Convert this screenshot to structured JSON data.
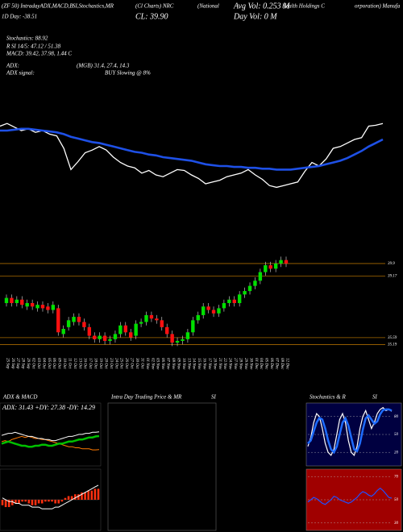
{
  "header": {
    "line1": [
      "(ZF 50) IntradayADX,MACD,B",
      "SI,Stochastics,MR",
      "(Cl Charts) NRC",
      "(National",
      "Avg Vol: 0.253 M",
      "Health Holdings C",
      "orporation) Manufa"
    ],
    "line2": [
      "1D Day: -38.51",
      "CL: 39.90",
      "Day Vol: 0  M"
    ],
    "info": [
      "Stochastics: 88.92",
      "R  SI 14/5: 47.12 / 51.38",
      "MACD: 39.42, 37.98, 1.44  C",
      "ADX:",
      "(MGB) 31.4, 27.4, 14.3",
      "ADX  signal:",
      "BUY Slowing @ 8%"
    ]
  },
  "overlay_chart": {
    "type": "line",
    "ylim": [
      0,
      100
    ],
    "series": [
      {
        "color": "#ffffff",
        "values": [
          85,
          88,
          84,
          80,
          82,
          78,
          80,
          76,
          74,
          60,
          36,
          45,
          55,
          58,
          62,
          58,
          50,
          44,
          40,
          38,
          32,
          35,
          30,
          28,
          32,
          36,
          35,
          30,
          26,
          20,
          22,
          24,
          28,
          30,
          32,
          36,
          30,
          25,
          18,
          16,
          18,
          20,
          22,
          34,
          44,
          40,
          48,
          60,
          62,
          66,
          70,
          72,
          85,
          86,
          88
        ]
      },
      {
        "color": "#1e50e6",
        "values": [
          80,
          80,
          81,
          82,
          82,
          81,
          80,
          79,
          78,
          76,
          73,
          71,
          69,
          67,
          66,
          64,
          62,
          60,
          58,
          56,
          55,
          53,
          52,
          50,
          49,
          48,
          47,
          46,
          44,
          42,
          41,
          40,
          40,
          39,
          39,
          38,
          38,
          37,
          37,
          36,
          36,
          36,
          37,
          38,
          39,
          40,
          42,
          44,
          46,
          49,
          53,
          57,
          62,
          66,
          70
        ]
      }
    ]
  },
  "price_chart": {
    "type": "candlestick",
    "up_color": "#00e000",
    "down_color": "#ff1010",
    "level_color": "#a86a00",
    "ylim": [
      34.6,
      40.6
    ],
    "yticks": [
      39.9,
      39.17,
      35.59,
      35.19
    ],
    "dates": [
      "25 Sep",
      "26 Sep",
      "27 Sep",
      "28 Sep",
      "29 Sep",
      "02 Oct",
      "03 Oct",
      "04 Oct",
      "05 Oct",
      "06 Oct",
      "09 Oct",
      "10 Oct",
      "11 Oct",
      "12 Oct",
      "13 Oct",
      "16 Oct",
      "17 Oct",
      "18 Oct",
      "19 Oct",
      "20 Oct",
      "23 Oct",
      "24 Oct",
      "25 Oct",
      "26 Oct",
      "27 Oct",
      "30 Oct",
      "31 Oct",
      "01 Nov",
      "02 Nov",
      "03 Nov",
      "06 Nov",
      "07 Nov",
      "08 Nov",
      "09 Nov",
      "10 Nov",
      "13 Nov",
      "14 Nov",
      "15 Nov",
      "16 Nov",
      "17 Nov",
      "20 Nov",
      "21 Nov",
      "22 Nov",
      "24 Nov",
      "27 Nov",
      "28 Nov",
      "29 Nov",
      "30 Nov",
      "01 Dec",
      "04 Dec",
      "05 Dec",
      "06 Dec",
      "07 Dec",
      "08 Dec",
      "12 Dec"
    ],
    "open": [
      37.6,
      37.9,
      37.6,
      37.8,
      37.4,
      37.6,
      37.3,
      37.5,
      37.4,
      37.2,
      37.3,
      35.8,
      36.2,
      36.5,
      36.8,
      36.5,
      36.2,
      35.7,
      35.5,
      35.7,
      35.4,
      35.5,
      35.8,
      36.3,
      35.9,
      35.7,
      36.4,
      36.5,
      36.9,
      36.7,
      36.6,
      36.2,
      35.8,
      35.3,
      35.4,
      35.5,
      35.9,
      36.6,
      36.9,
      37.4,
      37.2,
      37.0,
      37.3,
      37.6,
      37.8,
      37.6,
      38.1,
      38.3,
      38.6,
      38.9,
      39.4,
      39.8,
      39.6,
      39.9,
      40.1
    ],
    "high": [
      38.1,
      38.1,
      38.0,
      38.0,
      37.8,
      37.8,
      37.7,
      37.7,
      37.6,
      37.7,
      37.5,
      36.3,
      36.8,
      37.0,
      37.0,
      36.7,
      36.4,
      35.9,
      35.9,
      35.9,
      35.7,
      36.0,
      36.5,
      36.5,
      36.1,
      36.6,
      36.7,
      37.1,
      37.1,
      36.9,
      36.8,
      36.4,
      36.0,
      35.6,
      35.7,
      36.1,
      36.8,
      37.1,
      37.6,
      37.6,
      37.4,
      37.5,
      37.8,
      38.0,
      38.0,
      38.3,
      38.5,
      38.8,
      39.1,
      39.6,
      40.0,
      40.0,
      40.1,
      40.3,
      40.3
    ],
    "low": [
      37.4,
      37.4,
      37.4,
      37.3,
      37.2,
      37.2,
      37.1,
      37.1,
      37.0,
      37.0,
      35.7,
      35.6,
      36.0,
      36.3,
      36.3,
      36.0,
      35.5,
      35.3,
      35.3,
      35.2,
      35.2,
      35.3,
      35.6,
      35.7,
      35.4,
      35.5,
      36.2,
      36.3,
      36.5,
      36.4,
      36.0,
      35.6,
      35.1,
      35.1,
      35.2,
      35.3,
      35.7,
      36.4,
      36.7,
      37.0,
      36.8,
      36.8,
      37.1,
      37.4,
      37.4,
      37.4,
      37.9,
      38.1,
      38.4,
      38.7,
      39.2,
      39.4,
      39.4,
      39.7,
      39.7
    ],
    "close": [
      37.9,
      37.6,
      37.8,
      37.5,
      37.6,
      37.4,
      37.5,
      37.3,
      37.2,
      37.5,
      35.9,
      36.1,
      36.6,
      36.8,
      36.5,
      36.2,
      35.7,
      35.5,
      35.7,
      35.4,
      35.5,
      35.8,
      36.3,
      35.9,
      35.6,
      36.4,
      36.5,
      36.9,
      36.7,
      36.6,
      36.2,
      35.8,
      35.3,
      35.4,
      35.5,
      35.9,
      36.6,
      36.9,
      37.4,
      37.2,
      37.0,
      37.3,
      37.6,
      37.8,
      37.6,
      38.1,
      38.3,
      38.6,
      38.9,
      39.4,
      39.8,
      39.6,
      39.9,
      40.1,
      39.9
    ]
  },
  "adx_chart": {
    "type": "line",
    "title": "ADX  & MACD",
    "label": "ADX: 31.43  +DY: 27.38  -DY: 14.29",
    "ylim": [
      0,
      50
    ],
    "series": [
      {
        "color": "#ff7a00",
        "values": [
          22,
          23,
          22,
          24,
          25,
          26,
          27,
          26,
          27,
          26,
          25,
          25,
          24,
          24,
          23,
          22,
          21,
          20,
          19,
          18,
          17,
          17,
          16,
          16,
          15,
          15,
          15,
          14,
          14,
          14.29
        ]
      },
      {
        "color": "#00c000",
        "values": [
          20,
          21,
          22,
          21,
          20,
          19,
          18,
          18,
          17,
          17,
          18,
          18,
          19,
          19,
          18,
          18,
          19,
          20,
          20,
          21,
          22,
          22,
          23,
          24,
          24,
          25,
          26,
          26,
          27,
          27.38
        ]
      },
      {
        "color": "#ffffff",
        "values": [
          28,
          29,
          30,
          30,
          31,
          30,
          29,
          28,
          27,
          27,
          26,
          25,
          25,
          24,
          24,
          23,
          23,
          24,
          25,
          26,
          27,
          27,
          28,
          29,
          29,
          30,
          30,
          31,
          31,
          31.43
        ]
      }
    ]
  },
  "macd_chart": {
    "type": "histogram",
    "ylim": [
      -1.5,
      1.5
    ],
    "bar_color": "#ff3010",
    "line_color": "#ffffff",
    "bars": [
      -0.3,
      -0.4,
      -0.4,
      -0.3,
      -0.2,
      -0.2,
      -0.1,
      -0.1,
      -0.2,
      -0.3,
      -0.3,
      -0.2,
      -0.2,
      -0.1,
      -0.1,
      -0.1,
      -0.2,
      -0.2,
      -0.1,
      0.1,
      0.2,
      0.2,
      0.3,
      0.3,
      0.4,
      0.4,
      0.5,
      0.5,
      0.6,
      0.6
    ],
    "line": [
      0.1,
      0.0,
      -0.1,
      -0.1,
      -0.2,
      -0.2,
      -0.3,
      -0.3,
      -0.3,
      -0.4,
      -0.4,
      -0.4,
      -0.5,
      -0.5,
      -0.5,
      -0.5,
      -0.4,
      -0.4,
      -0.3,
      -0.2,
      -0.1,
      0.0,
      0.1,
      0.2,
      0.3,
      0.4,
      0.5,
      0.6,
      0.7,
      0.8
    ]
  },
  "intraday_chart": {
    "title": "Intra Day Trading Price & MR",
    "title2": "SI"
  },
  "stoch_chart": {
    "type": "line",
    "title": "Stochastics & R",
    "title2": "SI",
    "ylim": [
      0,
      100
    ],
    "yticks": [
      80,
      50,
      20
    ],
    "series": [
      {
        "color": "#ffffff",
        "values": [
          30,
          45,
          70,
          85,
          80,
          60,
          35,
          20,
          15,
          25,
          50,
          75,
          85,
          70,
          40,
          20,
          15,
          30,
          60,
          80,
          90,
          75,
          60,
          70,
          85,
          92,
          95,
          90,
          92,
          88.92
        ]
      },
      {
        "color": "#1e6cff",
        "values": [
          35,
          40,
          55,
          70,
          78,
          75,
          60,
          40,
          25,
          20,
          30,
          50,
          70,
          77,
          65,
          45,
          25,
          22,
          35,
          58,
          77,
          82,
          75,
          68,
          72,
          84,
          91,
          92,
          92,
          90
        ]
      }
    ]
  },
  "rsi_chart": {
    "type": "line",
    "ylim": [
      25,
      75
    ],
    "yticks": [
      70,
      50,
      30
    ],
    "series": [
      {
        "color": "#2050ff",
        "values": [
          48,
          50,
          52,
          51,
          49,
          47,
          46,
          48,
          50,
          53,
          52,
          50,
          49,
          48,
          47,
          48,
          50,
          52,
          55,
          57,
          56,
          54,
          53,
          55,
          58,
          60,
          58,
          55,
          52,
          51.38
        ]
      }
    ]
  }
}
